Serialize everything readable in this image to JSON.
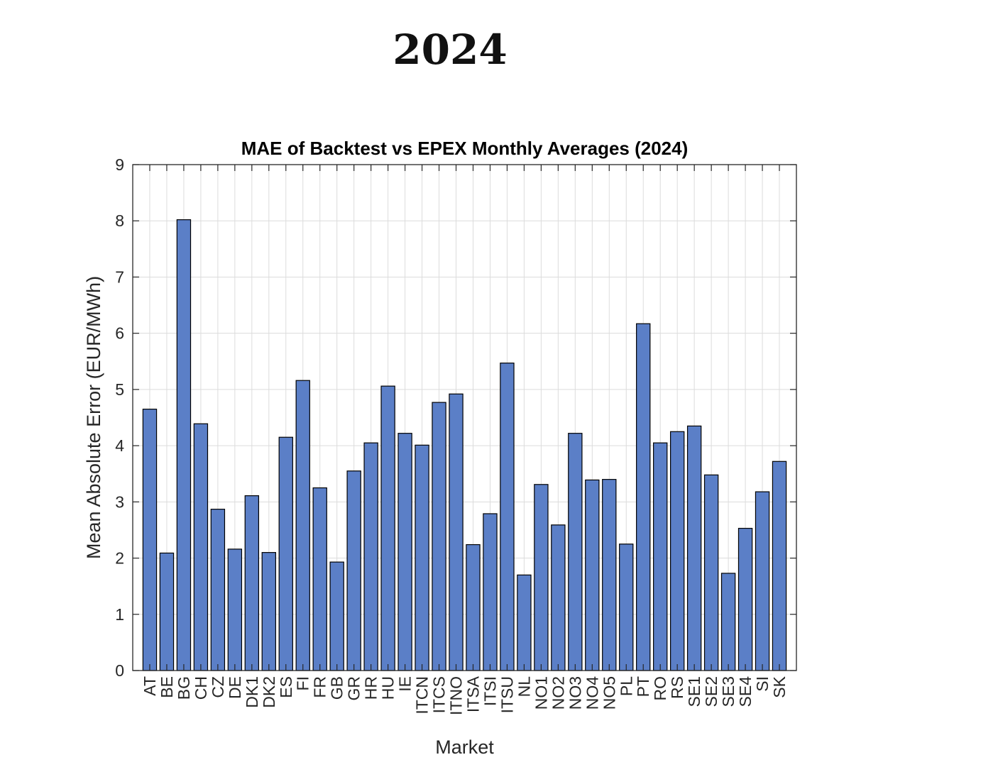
{
  "heading": "2024",
  "chart_data": {
    "type": "bar",
    "title": "MAE of Backtest vs EPEX Monthly Averages (2024)",
    "xlabel": "Market",
    "ylabel": "Mean Absolute Error (EUR/MWh)",
    "ylim": [
      0,
      9
    ],
    "yticks": [
      "0",
      "1",
      "2",
      "3",
      "4",
      "5",
      "6",
      "7",
      "8",
      "9"
    ],
    "grid": true,
    "bar_color": "#5b7fc7",
    "categories": [
      "AT",
      "BE",
      "BG",
      "CH",
      "CZ",
      "DE",
      "DK1",
      "DK2",
      "ES",
      "FI",
      "FR",
      "GB",
      "GR",
      "HR",
      "HU",
      "IE",
      "ITCN",
      "ITCS",
      "ITNO",
      "ITSA",
      "ITSI",
      "ITSU",
      "NL",
      "NO1",
      "NO2",
      "NO3",
      "NO4",
      "NO5",
      "PL",
      "PT",
      "RO",
      "RS",
      "SE1",
      "SE2",
      "SE3",
      "SE4",
      "SI",
      "SK"
    ],
    "values": [
      4.65,
      2.09,
      8.02,
      4.39,
      2.87,
      2.16,
      3.11,
      2.1,
      4.15,
      5.16,
      3.25,
      1.93,
      3.55,
      4.05,
      5.06,
      4.22,
      4.01,
      4.77,
      4.92,
      2.24,
      2.79,
      5.47,
      1.7,
      3.31,
      2.59,
      4.22,
      3.39,
      3.4,
      2.25,
      6.17,
      4.05,
      4.25,
      4.35,
      3.48,
      1.73,
      2.53,
      3.18,
      3.72
    ]
  }
}
